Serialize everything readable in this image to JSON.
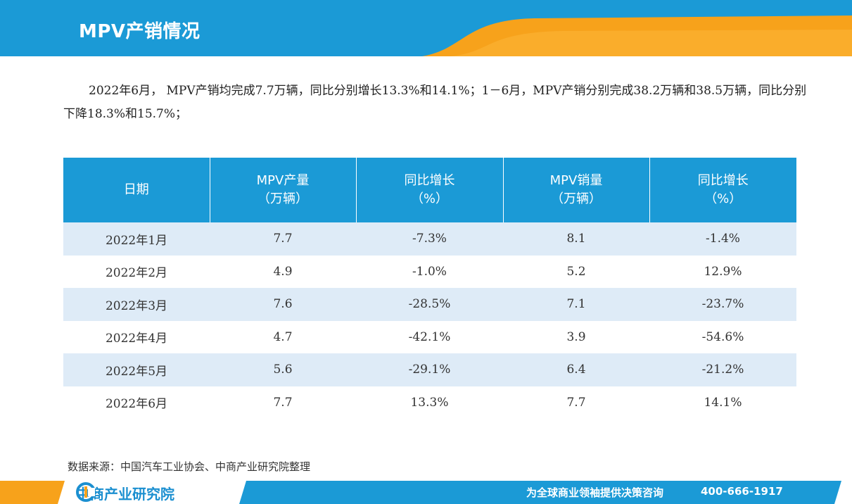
{
  "header": {
    "title": "MPV产销情况"
  },
  "intro": {
    "text": "2022年6月， MPV产销均完成7.7万辆，同比分别增长13.3%和14.1%；1－6月，MPV产销分别完成38.2万辆和38.5万辆，同比分别下降18.3%和15.7%；"
  },
  "table": {
    "headers": [
      {
        "line1": "日期",
        "line2": ""
      },
      {
        "line1": "MPV产量",
        "line2": "（万辆）"
      },
      {
        "line1": "同比增长",
        "line2": "（%）"
      },
      {
        "line1": "MPV销量",
        "line2": "（万辆）"
      },
      {
        "line1": "同比增长",
        "line2": "（%）"
      }
    ],
    "rows": [
      [
        "2022年1月",
        "7.7",
        "-7.3%",
        "8.1",
        "-1.4%"
      ],
      [
        "2022年2月",
        "4.9",
        "-1.0%",
        "5.2",
        "12.9%"
      ],
      [
        "2022年3月",
        "7.6",
        "-28.5%",
        "7.1",
        "-23.7%"
      ],
      [
        "2022年4月",
        "4.7",
        "-42.1%",
        "3.9",
        "-54.6%"
      ],
      [
        "2022年5月",
        "5.6",
        "-29.1%",
        "6.4",
        "-21.2%"
      ],
      [
        "2022年6月",
        "7.7",
        "13.3%",
        "7.7",
        "14.1%"
      ]
    ]
  },
  "source": {
    "text": "数据来源：中国汽车工业协会、中商产业研究院整理"
  },
  "footer": {
    "logo_text": "中商产业研究院",
    "slogan": "为全球商业领袖提供决策咨询",
    "phone": "400-666-1917"
  },
  "colors": {
    "header_blue": "#1b9ad6",
    "accent_orange": "#f7a21b",
    "table_header": "#1b9ad6",
    "row_shade": "#deebf7"
  },
  "icons": {
    "logo": "company-logo-icon"
  }
}
